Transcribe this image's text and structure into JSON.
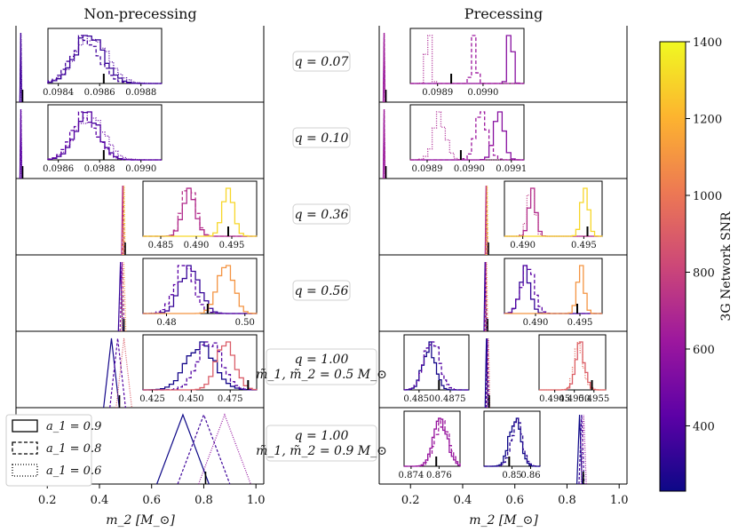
{
  "chart_data": {
    "type": "histogram",
    "titles": {
      "left": "Non-precessing",
      "right": "Precessing"
    },
    "xlabel": "m_2 [M_⊙]",
    "xlim": [
      0.08,
      1.03
    ],
    "xticks": [
      0.2,
      0.4,
      0.6,
      0.8,
      1.0
    ],
    "xtick_labels": [
      "0.2",
      "0.4",
      "0.6",
      "0.8",
      "1.0"
    ],
    "colorbar": {
      "label": "3G Network SNR",
      "range": [
        230,
        1400
      ],
      "ticks": [
        400,
        600,
        800,
        1000,
        1200,
        1400
      ],
      "tick_labels": [
        "400",
        "600",
        "800",
        "1000",
        "1200",
        "1400"
      ],
      "stops": [
        "#0d0887",
        "#5c01a6",
        "#9c179e",
        "#cc4778",
        "#ed7953",
        "#fdb42f",
        "#f0f921"
      ]
    },
    "legend": [
      {
        "label": "a_1 = 0.9",
        "style": "solid"
      },
      {
        "label": "a_1 = 0.8",
        "style": "dashed"
      },
      {
        "label": "a_1 = 0.6",
        "style": "dotted"
      }
    ],
    "rows": [
      {
        "label": "q = 0.07",
        "label2": "",
        "left": {
          "center": 0.0986,
          "width": 0.0005,
          "snr": [
            330,
            360,
            390
          ],
          "inset_range": [
            0.09835,
            0.0989
          ],
          "inset_ticks": [
            0.0984,
            0.0986,
            0.0988
          ],
          "inset_tick_labels": [
            "0.0984",
            "0.0986",
            "0.0988"
          ],
          "inset_posts": [
            {
              "mean": 0.09855,
              "sd": 7e-05,
              "snr": 330,
              "style": "solid"
            },
            {
              "mean": 0.09853,
              "sd": 7e-05,
              "snr": 360,
              "style": "dashed"
            },
            {
              "mean": 0.09856,
              "sd": 8e-05,
              "snr": 390,
              "style": "dotted"
            }
          ],
          "inset_truth": 0.09862
        },
        "right": {
          "center": 0.099,
          "width": 0.0005,
          "snr": [
            560,
            620,
            680
          ],
          "inset_range": [
            0.09884,
            0.09909
          ],
          "inset_ticks": [
            0.0989,
            0.099
          ],
          "inset_tick_labels": [
            "0.0989",
            "0.0990"
          ],
          "inset_posts": [
            {
              "mean": 0.09906,
              "sd": 5e-06,
              "snr": 560,
              "style": "solid"
            },
            {
              "mean": 0.09898,
              "sd": 5e-06,
              "snr": 620,
              "style": "dashed"
            },
            {
              "mean": 0.09888,
              "sd": 5e-06,
              "snr": 680,
              "style": "dotted"
            }
          ],
          "inset_truth": 0.09893
        }
      },
      {
        "label": "q = 0.10",
        "label2": "",
        "left": {
          "center": 0.0988,
          "width": 0.0005,
          "snr": [
            380,
            420,
            460
          ],
          "inset_range": [
            0.09855,
            0.0991
          ],
          "inset_ticks": [
            0.0986,
            0.0988,
            0.099
          ],
          "inset_tick_labels": [
            "0.0986",
            "0.0988",
            "0.0990"
          ],
          "inset_posts": [
            {
              "mean": 0.09874,
              "sd": 6e-05,
              "snr": 380,
              "style": "solid"
            },
            {
              "mean": 0.09873,
              "sd": 6e-05,
              "snr": 420,
              "style": "dashed"
            },
            {
              "mean": 0.09875,
              "sd": 7e-05,
              "snr": 460,
              "style": "dotted"
            }
          ],
          "inset_truth": 0.09882
        },
        "right": {
          "center": 0.099,
          "width": 0.0005,
          "snr": [
            560,
            620,
            680
          ],
          "inset_range": [
            0.09886,
            0.09913
          ],
          "inset_ticks": [
            0.0989,
            0.099,
            0.0991
          ],
          "inset_tick_labels": [
            "0.0989",
            "0.0990",
            "0.0991"
          ],
          "inset_posts": [
            {
              "mean": 0.09907,
              "sd": 1.2e-05,
              "snr": 560,
              "style": "solid"
            },
            {
              "mean": 0.09903,
              "sd": 1.5e-05,
              "snr": 620,
              "style": "dashed"
            },
            {
              "mean": 0.09893,
              "sd": 1.5e-05,
              "snr": 680,
              "style": "dotted"
            }
          ],
          "inset_truth": 0.09898
        }
      },
      {
        "label": "q = 0.36",
        "label2": "",
        "left": {
          "center": 0.492,
          "width": 0.004,
          "snr": [
            700,
            900,
            1300
          ],
          "inset_range": [
            0.4825,
            0.4985
          ],
          "inset_ticks": [
            0.485,
            0.49,
            0.495
          ],
          "inset_tick_labels": [
            "0.485",
            "0.490",
            "0.495"
          ],
          "inset_posts": [
            {
              "mean": 0.489,
              "sd": 0.0009,
              "snr": 700,
              "style": "solid"
            },
            {
              "mean": 0.489,
              "sd": 0.0009,
              "snr": 720,
              "style": "dashed"
            },
            {
              "mean": 0.4945,
              "sd": 0.0008,
              "snr": 1300,
              "style": "solid"
            }
          ],
          "inset_truth": 0.4945
        },
        "right": {
          "center": 0.492,
          "width": 0.003,
          "snr": [
            700,
            900,
            1300
          ],
          "inset_range": [
            0.4885,
            0.4965
          ],
          "inset_ticks": [
            0.49,
            0.495
          ],
          "inset_tick_labels": [
            "0.490",
            "0.495"
          ],
          "inset_posts": [
            {
              "mean": 0.4908,
              "sd": 0.0003,
              "snr": 700,
              "style": "solid"
            },
            {
              "mean": 0.4907,
              "sd": 0.0003,
              "snr": 760,
              "style": "dotted"
            },
            {
              "mean": 0.4951,
              "sd": 0.0003,
              "snr": 1300,
              "style": "solid"
            }
          ],
          "inset_truth": 0.4953
        }
      },
      {
        "label": "q = 0.56",
        "label2": "",
        "left": {
          "center": 0.487,
          "width": 0.008,
          "snr": [
            330,
            600,
            1100
          ],
          "inset_range": [
            0.474,
            0.503
          ],
          "inset_ticks": [
            0.48,
            0.5
          ],
          "inset_tick_labels": [
            "0.48",
            "0.50"
          ],
          "inset_posts": [
            {
              "mean": 0.486,
              "sd": 0.0025,
              "snr": 330,
              "style": "solid"
            },
            {
              "mean": 0.4845,
              "sd": 0.0025,
              "snr": 420,
              "style": "dashed"
            },
            {
              "mean": 0.495,
              "sd": 0.002,
              "snr": 1100,
              "style": "solid"
            }
          ],
          "inset_truth": 0.4905
        },
        "right": {
          "center": 0.489,
          "width": 0.004,
          "snr": [
            330,
            600,
            1100
          ],
          "inset_range": [
            0.4865,
            0.4975
          ],
          "inset_ticks": [
            0.49,
            0.495
          ],
          "inset_tick_labels": [
            "0.490",
            "0.495"
          ],
          "inset_posts": [
            {
              "mean": 0.4888,
              "sd": 0.0006,
              "snr": 330,
              "style": "solid"
            },
            {
              "mean": 0.4891,
              "sd": 0.0007,
              "snr": 420,
              "style": "dashed"
            },
            {
              "mean": 0.4951,
              "sd": 0.0004,
              "snr": 1100,
              "style": "solid"
            }
          ],
          "inset_truth": 0.4947
        }
      },
      {
        "label": "q = 1.00",
        "label2": "m̃_1, m̃_2 = 0.5 M_⊙",
        "left": {
          "center": 0.47,
          "width": 0.03,
          "snr": [
            250,
            400,
            900
          ],
          "inset_range": [
            0.419,
            0.492
          ],
          "inset_ticks": [
            0.425,
            0.45,
            0.475
          ],
          "inset_tick_labels": [
            "0.425",
            "0.450",
            "0.475"
          ],
          "inset_posts": [
            {
              "mean": 0.456,
              "sd": 0.009,
              "snr": 250,
              "style": "solid"
            },
            {
              "mean": 0.462,
              "sd": 0.008,
              "snr": 400,
              "style": "dashed"
            },
            {
              "mean": 0.472,
              "sd": 0.006,
              "snr": 900,
              "style": "solid"
            }
          ],
          "inset_truth": 0.4865
        },
        "right": {
          "center": 0.495,
          "width": 0.005,
          "snr": [
            250,
            400,
            900
          ],
          "inset_range": [
            0.4838,
            0.489
          ],
          "inset_ticks": [
            0.485,
            0.4875
          ],
          "inset_tick_labels": [
            "0.4850",
            "0.4875"
          ],
          "inset_range2": [
            0.4941,
            0.4958
          ],
          "inset_ticks2": [
            0.4945,
            0.495,
            0.4955
          ],
          "inset_tick_labels2": [
            "0.4945",
            "0.4950",
            "0.4955"
          ],
          "inset_posts": [
            {
              "mean": 0.4858,
              "sd": 0.0005,
              "snr": 250,
              "style": "solid"
            },
            {
              "mean": 0.486,
              "sd": 0.0006,
              "snr": 400,
              "style": "dashed"
            }
          ],
          "inset_posts2": [
            {
              "mean": 0.49515,
              "sd": 0.00012,
              "snr": 900,
              "style": "solid"
            },
            {
              "mean": 0.49512,
              "sd": 0.00012,
              "snr": 950,
              "style": "dotted"
            }
          ],
          "inset_truth": 0.4866,
          "inset_truth2": 0.49545
        }
      },
      {
        "label": "q = 1.00",
        "label2": "m̃_1, m̃_2 = 0.9 M_⊙",
        "left": {
          "center": 0.8,
          "width": 0.1,
          "snr": [
            230,
            350,
            600
          ],
          "inset_range": null
        },
        "right": {
          "center": 0.856,
          "width": 0.01,
          "snr": [
            230,
            350,
            600
          ],
          "inset_range": [
            0.8735,
            0.8775
          ],
          "inset_ticks": [
            0.874,
            0.876
          ],
          "inset_tick_labels": [
            "0.874",
            "0.876"
          ],
          "inset_range2": [
            0.835,
            0.865
          ],
          "inset_ticks2": [
            0.85,
            0.86
          ],
          "inset_tick_labels2": [
            "0.85",
            "0.86"
          ],
          "inset_posts": [
            {
              "mean": 0.8761,
              "sd": 0.0005,
              "snr": 600,
              "style": "solid"
            },
            {
              "mean": 0.8762,
              "sd": 0.0005,
              "snr": 620,
              "style": "dashed"
            }
          ],
          "inset_posts2": [
            {
              "mean": 0.8515,
              "sd": 0.003,
              "snr": 230,
              "style": "solid"
            },
            {
              "mean": 0.8525,
              "sd": 0.003,
              "snr": 300,
              "style": "dashed"
            }
          ],
          "inset_truth": 0.8758,
          "inset_truth2": 0.8485
        }
      }
    ]
  }
}
